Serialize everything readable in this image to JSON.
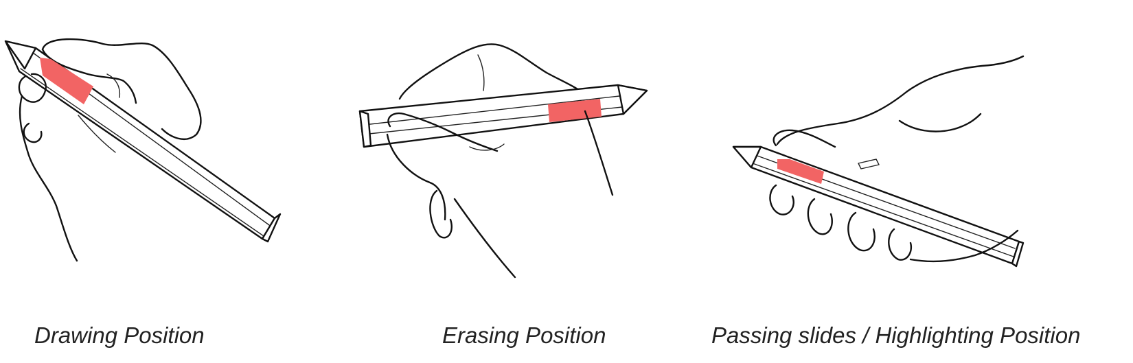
{
  "captions": {
    "drawing": "Drawing Position",
    "erasing": "Erasing Position",
    "passing": "Passing slides / Highlighting Position"
  },
  "colors": {
    "grip": "#f26464",
    "ink": "#111111",
    "background": "#ffffff"
  },
  "illustrations": {
    "drawing": "hand-holding-pen-drawing",
    "erasing": "hand-holding-pen-erasing",
    "passing": "hand-holding-pen-passing-slides"
  }
}
